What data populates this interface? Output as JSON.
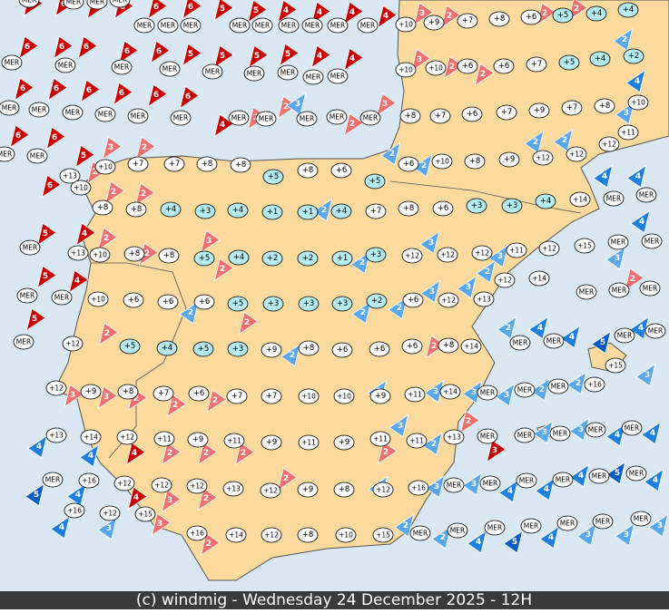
{
  "footer": "(c) windmig - Wednesday 24 December 2025 - 12H",
  "stations": [
    "MER",
    "MER",
    "MER",
    "MER",
    "MER",
    "MER",
    "MER",
    "MER",
    "MER",
    "MER",
    "MER",
    "MER",
    "MER",
    "+10",
    "+9",
    "+7",
    "+8",
    "+6",
    "+5",
    "+4",
    "+4",
    "MER",
    "MER",
    "MER",
    "MER",
    "MER",
    "MER",
    "MER",
    "MER",
    "MER",
    "+10",
    "+10",
    "+6",
    "+6",
    "+7",
    "+5",
    "+4",
    "+2",
    "MER",
    "MER",
    "MER",
    "MER",
    "MER",
    "MER",
    "MER",
    "MER",
    "MER",
    "MER",
    "MER",
    "+8",
    "+7",
    "+6",
    "+7",
    "+9",
    "+7",
    "+8",
    "+10",
    "MER",
    "MER",
    "+13",
    "+10",
    "+7",
    "+7",
    "+8",
    "+8",
    "+5",
    "+8",
    "+6",
    "+5",
    "+6",
    "+10",
    "+8",
    "+9",
    "+12",
    "+12",
    "+12",
    "+11",
    "+10",
    "+8",
    "+8",
    "+4",
    "+3",
    "+4",
    "+1",
    "+1",
    "+4",
    "+7",
    "+8",
    "+6",
    "+3",
    "+3",
    "+4",
    "+14",
    "MER",
    "MER",
    "MER",
    "+13",
    "+10",
    "+8",
    "+8",
    "+5",
    "+4",
    "+2",
    "+2",
    "+1",
    "+3",
    "+12",
    "+12",
    "+12",
    "+11",
    "+12",
    "+15",
    "MER",
    "MER",
    "+12",
    "+14",
    "MER",
    "MER",
    "+10",
    "+6",
    "+6",
    "+6",
    "+5",
    "+3",
    "+3",
    "+3",
    "+2",
    "+6",
    "+12",
    "+13",
    "MER",
    "MER",
    "MER",
    "MER",
    "+12",
    "+5",
    "+4",
    "+5",
    "+3",
    "+9",
    "+8",
    "+6",
    "+6",
    "+6",
    "+8",
    "+14",
    "MER",
    "MER",
    "MER",
    "MER",
    "+15",
    "+12",
    "+9",
    "+8",
    "+7",
    "+6",
    "+7",
    "+7",
    "+10",
    "+10",
    "+9",
    "+11",
    "+14",
    "MER",
    "MER",
    "MER",
    "+16",
    "+13",
    "+14",
    "+12",
    "+11",
    "+9",
    "+11",
    "+9",
    "+11",
    "+9",
    "+11",
    "+11",
    "+13",
    "MER",
    "MER",
    "MER",
    "MER",
    "MER",
    "MER",
    "+16",
    "+12",
    "+12",
    "+12",
    "+13",
    "+12",
    "+9",
    "+8",
    "+12",
    "+16",
    "MER",
    "MER",
    "MER",
    "MER",
    "MER",
    "MER",
    "+16",
    "+12",
    "+15",
    "+16",
    "+14",
    "+12",
    "+8",
    "+10",
    "+15",
    "MER",
    "MER",
    "MER",
    "MER",
    "MER",
    "MER",
    "MER"
  ],
  "winds": {
    "values": [
      6,
      6,
      6,
      6,
      6,
      6,
      5,
      5,
      4,
      4,
      4,
      4,
      3,
      2,
      2,
      2,
      6,
      6,
      6,
      6,
      6,
      5,
      5,
      5,
      5,
      4,
      4,
      3,
      2,
      2,
      2,
      4,
      6,
      6,
      6,
      6,
      6,
      6,
      4,
      2,
      2,
      3,
      2,
      3,
      3,
      6,
      6,
      5,
      3,
      2,
      2,
      2,
      2,
      2,
      2,
      4,
      4,
      6,
      2,
      2,
      2,
      4,
      2,
      3,
      2,
      2,
      2,
      3,
      2,
      3,
      4,
      3,
      2,
      5,
      5,
      4,
      5,
      2,
      2,
      2,
      3,
      3,
      2,
      4,
      4,
      5,
      4,
      2,
      2,
      2,
      2,
      3,
      3,
      3,
      2,
      2,
      2,
      3,
      3,
      3,
      3,
      2,
      2,
      3,
      2,
      2,
      3,
      3,
      3,
      4,
      4,
      4,
      4,
      4,
      2,
      2,
      2,
      2,
      5,
      4,
      4,
      3,
      2,
      2,
      3,
      3,
      3,
      4,
      4,
      4,
      5,
      4,
      4,
      3,
      3,
      2,
      2,
      2,
      4,
      5,
      4,
      3,
      3,
      3
    ],
    "colors": [
      "#cc0000",
      "#cc0000",
      "#cc0000",
      "#cc0000",
      "#cc0000",
      "#cc0000",
      "#cc0000",
      "#cc0000",
      "#cc0000",
      "#cc0000",
      "#cc0000",
      "#cc0000",
      "#f07070",
      "#f07070",
      "#f07070",
      "#f07070",
      "#cc0000",
      "#cc0000",
      "#cc0000",
      "#cc0000",
      "#cc0000",
      "#cc0000",
      "#cc0000",
      "#cc0000",
      "#cc0000",
      "#cc0000",
      "#cc0000",
      "#f07070",
      "#f07070",
      "#f07070",
      "#5aa8ec",
      "#1e7fe0",
      "#cc0000",
      "#cc0000",
      "#cc0000",
      "#cc0000",
      "#cc0000",
      "#cc0000",
      "#cc0000",
      "#f07070",
      "#f07070",
      "#5aa8ec",
      "#f07070",
      "#f07070",
      "#5aa8ec",
      "#cc0000",
      "#cc0000",
      "#cc0000",
      "#f07070",
      "#f07070",
      "#f07070",
      "#5aa8ec",
      "#5aa8ec",
      "#5aa8ec",
      "#5aa8ec",
      "#1e7fe0",
      "#1e7fe0",
      "#cc0000",
      "#f07070",
      "#f07070",
      "#5aa8ec",
      "#cc0000",
      "#f07070",
      "#f07070",
      "#f07070",
      "#f07070",
      "#5aa8ec",
      "#5aa8ec",
      "#5aa8ec",
      "#5aa8ec",
      "#1e7fe0",
      "#5aa8ec",
      "#f07070",
      "#cc0000",
      "#cc0000",
      "#cc0000",
      "#cc0000",
      "#5aa8ec",
      "#5aa8ec",
      "#5aa8ec",
      "#5aa8ec",
      "#5aa8ec",
      "#5aa8ec",
      "#1e7fe0",
      "#1e7fe0",
      "#0a5cc0",
      "#1e7fe0",
      "#f07070",
      "#f07070",
      "#5aa8ec",
      "#f07070",
      "#5aa8ec",
      "#f07070",
      "#f07070",
      "#f07070",
      "#f07070",
      "#f07070",
      "#5aa8ec",
      "#5aa8ec",
      "#5aa8ec",
      "#5aa8ec",
      "#5aa8ec",
      "#5aa8ec",
      "#5aa8ec",
      "#5aa8ec",
      "#f07070",
      "#cc0000",
      "#5aa8ec",
      "#5aa8ec",
      "#1e7fe0",
      "#1e7fe0",
      "#1e7fe0",
      "#1e7fe0",
      "#cc0000",
      "#f07070",
      "#f07070",
      "#f07070",
      "#f07070",
      "#0a5cc0",
      "#1e7fe0",
      "#cc0000",
      "#f07070",
      "#f07070",
      "#f07070",
      "#5aa8ec",
      "#5aa8ec",
      "#5aa8ec",
      "#1e7fe0",
      "#1e7fe0",
      "#1e7fe0",
      "#0a5cc0",
      "#1e7fe0",
      "#1e7fe0",
      "#5aa8ec",
      "#f07070",
      "#f07070",
      "#5aa8ec",
      "#5aa8ec",
      "#1e7fe0",
      "#0a5cc0",
      "#1e7fe0",
      "#5aa8ec",
      "#5aa8ec",
      "#5aa8ec"
    ]
  }
}
